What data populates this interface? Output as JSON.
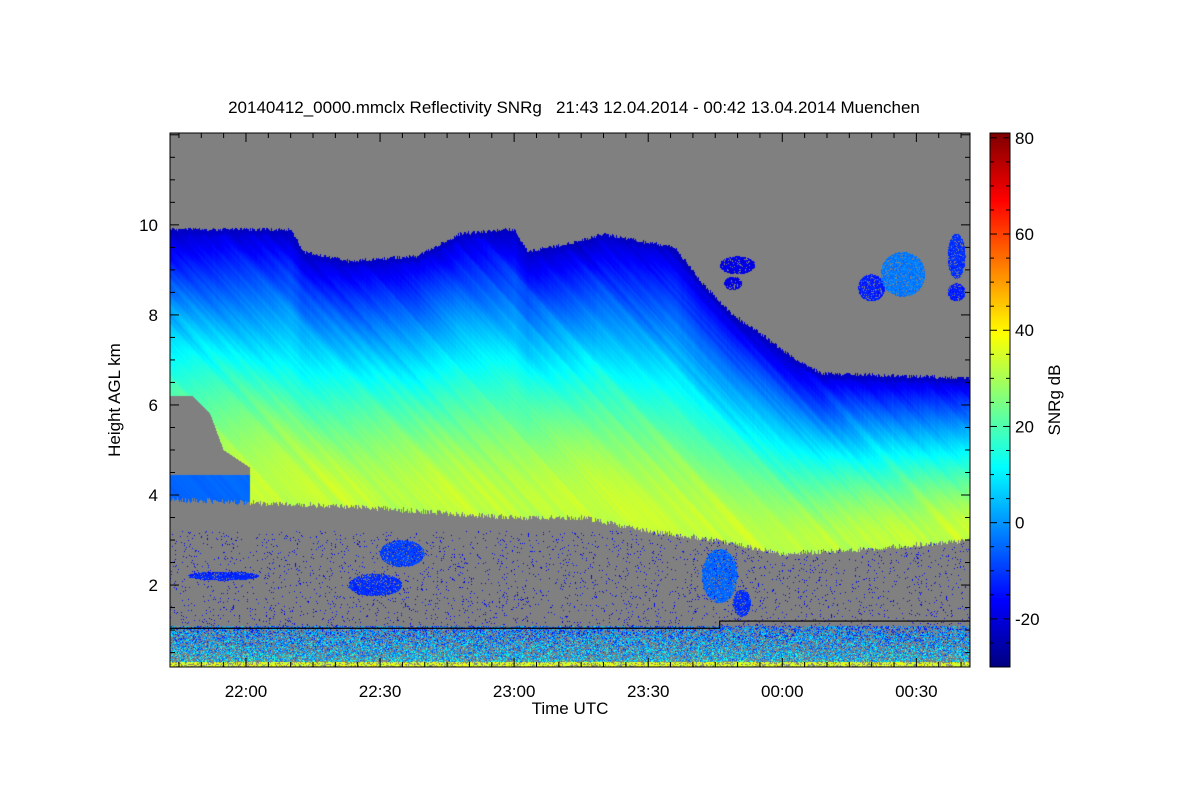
{
  "chart_data": {
    "type": "heatmap",
    "title": "20140412_0000.mmclx Reflectivity SNRg   21:43 12.04.2014 - 00:42 13.04.2014 Muenchen",
    "xlabel": "Time UTC",
    "ylabel": "Height AGL km",
    "colorbar_label": "SNRg dB",
    "colormap": "jet",
    "background_color": "#808080",
    "x_start": "21:43",
    "x_end": "00:42",
    "xlim_minutes": [
      0,
      179
    ],
    "ylim": [
      0.18,
      12.04
    ],
    "clim": [
      -30,
      81
    ],
    "x_ticks": [
      {
        "minute": 17,
        "label": "22:00"
      },
      {
        "minute": 47,
        "label": "22:30"
      },
      {
        "minute": 77,
        "label": "23:00"
      },
      {
        "minute": 107,
        "label": "23:30"
      },
      {
        "minute": 137,
        "label": "00:00"
      },
      {
        "minute": 167,
        "label": "00:30"
      }
    ],
    "y_ticks": [
      {
        "value": 2,
        "label": "2"
      },
      {
        "value": 4,
        "label": "4"
      },
      {
        "value": 6,
        "label": "6"
      },
      {
        "value": 8,
        "label": "8"
      },
      {
        "value": 10,
        "label": "10"
      }
    ],
    "colorbar_ticks": [
      {
        "value": -20,
        "label": "-20"
      },
      {
        "value": 0,
        "label": "0"
      },
      {
        "value": 20,
        "label": "20"
      },
      {
        "value": 40,
        "label": "40"
      },
      {
        "value": 60,
        "label": "60"
      },
      {
        "value": 80,
        "label": "80"
      }
    ],
    "cloud_top_km": [
      [
        0,
        9.9
      ],
      [
        27,
        9.9
      ],
      [
        30,
        9.4
      ],
      [
        40,
        9.2
      ],
      [
        55,
        9.3
      ],
      [
        65,
        9.8
      ],
      [
        77,
        9.9
      ],
      [
        80,
        9.4
      ],
      [
        90,
        9.6
      ],
      [
        97,
        9.8
      ],
      [
        107,
        9.6
      ],
      [
        113,
        9.5
      ],
      [
        120,
        8.6
      ],
      [
        126,
        8.0
      ],
      [
        132,
        7.6
      ],
      [
        140,
        7.0
      ],
      [
        146,
        6.7
      ],
      [
        179,
        6.6
      ]
    ],
    "cloud_base_km": [
      [
        0,
        3.9
      ],
      [
        27,
        3.8
      ],
      [
        47,
        3.7
      ],
      [
        77,
        3.5
      ],
      [
        92,
        3.5
      ],
      [
        107,
        3.2
      ],
      [
        122,
        3.0
      ],
      [
        137,
        2.7
      ],
      [
        157,
        2.8
      ],
      [
        179,
        3.0
      ]
    ],
    "peak_snr_db": 38,
    "top_edge_snr_db": -22,
    "clear_gap": [
      [
        0,
        6.2
      ],
      [
        5,
        6.2
      ],
      [
        9,
        5.8
      ],
      [
        12,
        5.0
      ],
      [
        18,
        4.6
      ],
      [
        18,
        4.45
      ],
      [
        0,
        4.45
      ]
    ],
    "echo_patches": [
      {
        "minute": 52,
        "km": 2.7,
        "dminute": 5,
        "dkm": 0.3,
        "snr": -12
      },
      {
        "minute": 46,
        "km": 2.0,
        "dminute": 6,
        "dkm": 0.25,
        "snr": -14
      },
      {
        "minute": 12,
        "km": 2.2,
        "dminute": 8,
        "dkm": 0.1,
        "snr": -15
      },
      {
        "minute": 123,
        "km": 2.2,
        "dminute": 4,
        "dkm": 0.6,
        "snr": -8
      },
      {
        "minute": 128,
        "km": 1.6,
        "dminute": 2,
        "dkm": 0.3,
        "snr": -14
      },
      {
        "minute": 164,
        "km": 8.9,
        "dminute": 5,
        "dkm": 0.5,
        "snr": -6
      },
      {
        "minute": 157,
        "km": 8.6,
        "dminute": 3,
        "dkm": 0.3,
        "snr": -16
      },
      {
        "minute": 176,
        "km": 9.3,
        "dminute": 2,
        "dkm": 0.5,
        "snr": -14
      },
      {
        "minute": 176,
        "km": 8.5,
        "dminute": 2,
        "dkm": 0.2,
        "snr": -16
      },
      {
        "minute": 127,
        "km": 9.1,
        "dminute": 4,
        "dkm": 0.2,
        "snr": -22
      },
      {
        "minute": 126,
        "km": 8.7,
        "dminute": 2,
        "dkm": 0.15,
        "snr": -22
      }
    ],
    "threshold_line_km": [
      [
        0,
        1.04
      ],
      [
        123,
        1.04
      ],
      [
        123,
        1.2
      ],
      [
        179,
        1.2
      ]
    ]
  }
}
